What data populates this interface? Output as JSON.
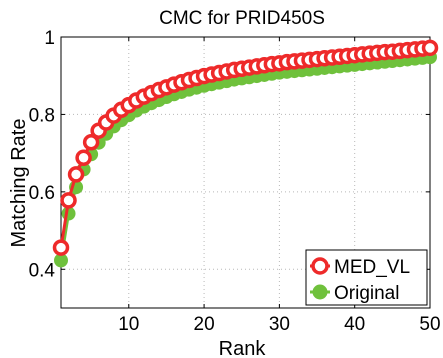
{
  "chart_data": {
    "type": "scatter",
    "title": "CMC for PRID450S",
    "xlabel": "Rank",
    "ylabel": "Matching Rate",
    "xlim": [
      1,
      50
    ],
    "ylim": [
      0.3,
      1.0
    ],
    "xticks": [
      10,
      20,
      30,
      40,
      50
    ],
    "yticks": [
      0.4,
      0.6,
      0.8,
      1
    ],
    "ytick_labels": [
      "0.4",
      "0.6",
      "0.8",
      "1"
    ],
    "grid": true,
    "legend_position": "bottom-right",
    "x": [
      1,
      2,
      3,
      4,
      5,
      6,
      7,
      8,
      9,
      10,
      11,
      12,
      13,
      14,
      15,
      16,
      17,
      18,
      19,
      20,
      21,
      22,
      23,
      24,
      25,
      26,
      27,
      28,
      29,
      30,
      31,
      32,
      33,
      34,
      35,
      36,
      37,
      38,
      39,
      40,
      41,
      42,
      43,
      44,
      45,
      46,
      47,
      48,
      49,
      50
    ],
    "series": [
      {
        "name": "MED_VL",
        "color": "#ee2a2a",
        "marker": "ring",
        "values": [
          0.456,
          0.578,
          0.645,
          0.688,
          0.728,
          0.758,
          0.779,
          0.797,
          0.812,
          0.824,
          0.836,
          0.846,
          0.855,
          0.863,
          0.87,
          0.877,
          0.883,
          0.889,
          0.894,
          0.899,
          0.903,
          0.907,
          0.911,
          0.915,
          0.918,
          0.921,
          0.924,
          0.927,
          0.93,
          0.932,
          0.935,
          0.937,
          0.939,
          0.941,
          0.943,
          0.945,
          0.947,
          0.949,
          0.951,
          0.953,
          0.955,
          0.957,
          0.959,
          0.961,
          0.962,
          0.964,
          0.966,
          0.968,
          0.97,
          0.972
        ]
      },
      {
        "name": "Original",
        "color": "#6fc13c",
        "marker": "dot",
        "values": [
          0.423,
          0.544,
          0.612,
          0.658,
          0.697,
          0.727,
          0.75,
          0.769,
          0.785,
          0.798,
          0.81,
          0.82,
          0.829,
          0.837,
          0.845,
          0.852,
          0.858,
          0.864,
          0.869,
          0.874,
          0.878,
          0.882,
          0.886,
          0.89,
          0.893,
          0.896,
          0.899,
          0.902,
          0.905,
          0.908,
          0.91,
          0.912,
          0.914,
          0.916,
          0.918,
          0.92,
          0.922,
          0.924,
          0.926,
          0.928,
          0.93,
          0.932,
          0.934,
          0.936,
          0.938,
          0.94,
          0.942,
          0.944,
          0.946,
          0.948
        ]
      }
    ]
  }
}
